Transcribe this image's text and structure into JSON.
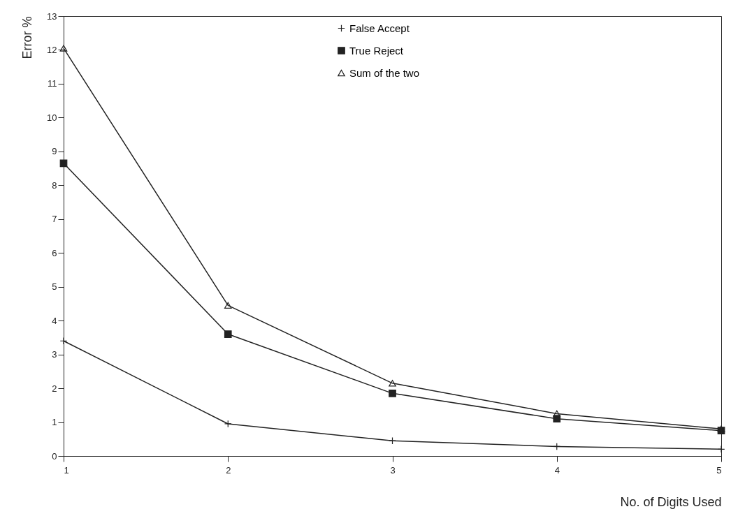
{
  "chart_data": {
    "type": "line",
    "xlabel": "No. of Digits Used",
    "ylabel": "Error %",
    "x": [
      1,
      2,
      3,
      4,
      5
    ],
    "series": [
      {
        "name": "False Accept",
        "color": "#222222",
        "marker": "cross",
        "values": [
          3.4,
          0.95,
          0.45,
          0.28,
          0.2
        ]
      },
      {
        "name": "True Reject",
        "color": "#222222",
        "marker": "square",
        "values": [
          8.65,
          3.6,
          1.85,
          1.1,
          0.75
        ]
      },
      {
        "name": "Sum of the two",
        "color": "#222222",
        "marker": "triangle",
        "values": [
          12.05,
          4.45,
          2.15,
          1.25,
          0.8
        ]
      }
    ],
    "xlim": [
      1,
      5
    ],
    "xticks": [
      1,
      2,
      3,
      4,
      5
    ],
    "ylim": [
      0,
      13
    ],
    "yticks": [
      0,
      1,
      2,
      3,
      4,
      5,
      6,
      7,
      8,
      9,
      10,
      11,
      12,
      13
    ],
    "grid": false,
    "legend": "top",
    "line_style": "solid"
  }
}
